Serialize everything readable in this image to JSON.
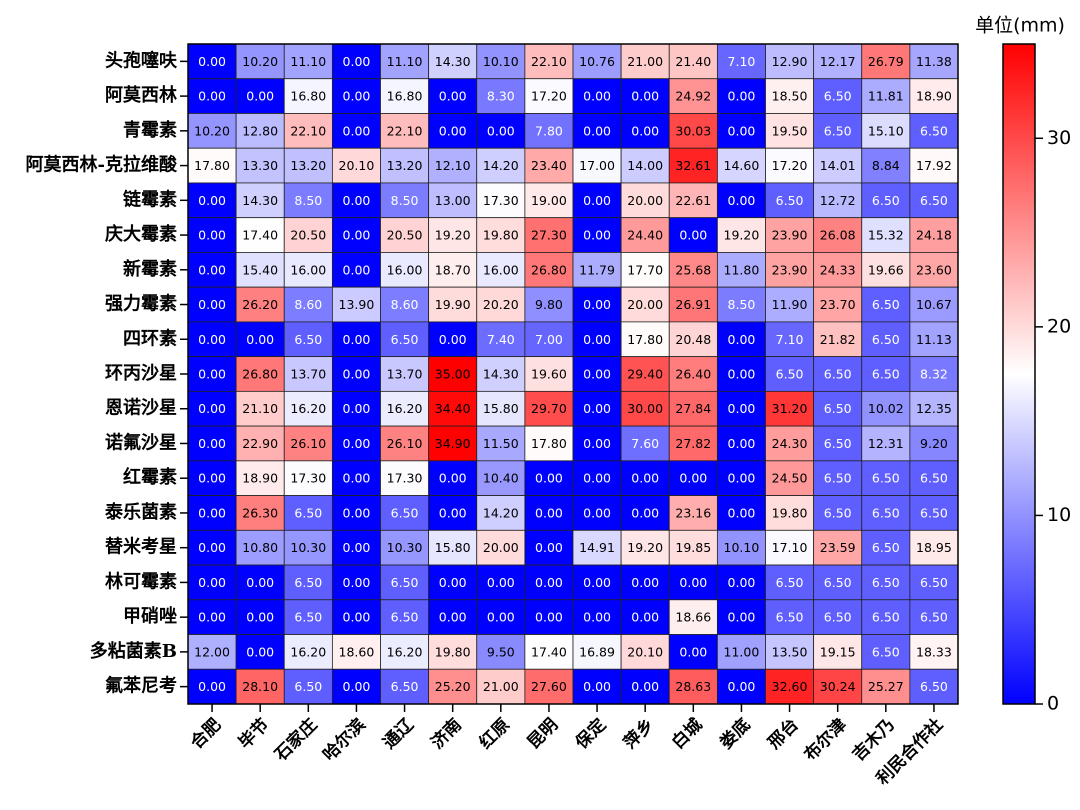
{
  "chart_data": {
    "type": "heatmap",
    "colorbar_title": "单位(mm)",
    "columns": [
      "合肥",
      "毕节",
      "石家庄",
      "哈尔滨",
      "通辽",
      "济南",
      "红原",
      "昆明",
      "保定",
      "萍乡",
      "白城",
      "娄底",
      "邢台",
      "布尔津",
      "吉木乃",
      "利民合作社"
    ],
    "rows": [
      "头孢噻呋",
      "阿莫西林",
      "青霉素",
      "阿莫西林-克拉维酸",
      "链霉素",
      "庆大霉素",
      "新霉素",
      "强力霉素",
      "四环素",
      "环丙沙星",
      "恩诺沙星",
      "诺氟沙星",
      "红霉素",
      "泰乐菌素",
      "替米考星",
      "林可霉素",
      "甲硝唑",
      "多粘菌素B",
      "氟苯尼考"
    ],
    "values": [
      [
        0,
        10.2,
        11.1,
        0,
        11.1,
        14.3,
        10.1,
        22.1,
        10.76,
        21,
        21.4,
        7.1,
        12.9,
        12.17,
        26.79,
        11.38
      ],
      [
        0,
        0,
        16.8,
        0,
        16.8,
        0,
        8.3,
        17.2,
        0,
        0,
        24.92,
        0,
        18.5,
        6.5,
        11.81,
        18.9
      ],
      [
        10.2,
        12.8,
        22.1,
        0,
        22.1,
        0,
        0,
        7.8,
        0,
        0,
        30.03,
        0,
        19.5,
        6.5,
        15.1,
        6.5
      ],
      [
        17.8,
        13.3,
        13.2,
        20.1,
        13.2,
        12.1,
        14.2,
        23.4,
        17,
        14,
        32.61,
        14.6,
        17.2,
        14.01,
        8.84,
        17.92
      ],
      [
        0,
        14.3,
        8.5,
        0,
        8.5,
        13,
        17.3,
        19,
        0,
        20,
        22.61,
        0,
        6.5,
        12.72,
        6.5,
        6.5
      ],
      [
        0,
        17.4,
        20.5,
        0,
        20.5,
        19.2,
        19.8,
        27.3,
        0,
        24.4,
        0,
        19.2,
        23.9,
        26.08,
        15.32,
        24.18
      ],
      [
        0,
        15.4,
        16,
        0,
        16,
        18.7,
        16,
        26.8,
        11.79,
        17.7,
        25.68,
        11.8,
        23.9,
        24.33,
        19.66,
        23.6
      ],
      [
        0,
        26.2,
        8.6,
        13.9,
        8.6,
        19.9,
        20.2,
        9.8,
        0,
        20,
        26.91,
        8.5,
        11.9,
        23.7,
        6.5,
        10.67
      ],
      [
        0,
        0,
        6.5,
        0,
        6.5,
        0,
        7.4,
        7,
        0,
        17.8,
        20.48,
        0,
        7.1,
        21.82,
        6.5,
        11.13
      ],
      [
        0,
        26.8,
        13.7,
        0,
        13.7,
        35,
        14.3,
        19.6,
        0,
        29.4,
        26.4,
        0,
        6.5,
        6.5,
        6.5,
        8.32
      ],
      [
        0,
        21.1,
        16.2,
        0,
        16.2,
        34.4,
        15.8,
        29.7,
        0,
        30,
        27.84,
        0,
        31.2,
        6.5,
        10.02,
        12.35
      ],
      [
        0,
        22.9,
        26.1,
        0,
        26.1,
        34.9,
        11.5,
        17.8,
        0,
        7.6,
        27.82,
        0,
        24.3,
        6.5,
        12.31,
        9.2
      ],
      [
        0,
        18.9,
        17.3,
        0,
        17.3,
        0,
        10.4,
        0,
        0,
        0,
        0,
        0,
        24.5,
        6.5,
        6.5,
        6.5
      ],
      [
        0,
        26.3,
        6.5,
        0,
        6.5,
        0,
        14.2,
        0,
        0,
        0,
        23.16,
        0,
        19.8,
        6.5,
        6.5,
        6.5
      ],
      [
        0,
        10.8,
        10.3,
        0,
        10.3,
        15.8,
        20,
        0,
        14.91,
        19.2,
        19.85,
        10.1,
        17.1,
        23.59,
        6.5,
        18.95
      ],
      [
        0,
        0,
        6.5,
        0,
        6.5,
        0,
        0,
        0,
        0,
        0,
        0,
        0,
        6.5,
        6.5,
        6.5,
        6.5
      ],
      [
        0,
        0,
        6.5,
        0,
        6.5,
        0,
        0,
        0,
        0,
        0,
        18.66,
        0,
        6.5,
        6.5,
        6.5,
        6.5
      ],
      [
        12,
        0,
        16.2,
        18.6,
        16.2,
        19.8,
        9.5,
        17.4,
        16.89,
        20.1,
        0,
        11,
        13.5,
        19.15,
        6.5,
        18.33
      ],
      [
        0,
        28.1,
        6.5,
        0,
        6.5,
        25.2,
        21,
        27.6,
        0,
        0,
        28.63,
        0,
        32.6,
        30.24,
        25.27,
        6.5
      ]
    ],
    "value_labels": [
      [
        "0.00",
        "10.20",
        "11.10",
        "0.00",
        "11.10",
        "14.30",
        "10.10",
        "22.10",
        "10.76",
        "21.00",
        "21.40",
        "7.10",
        "12.90",
        "12.17",
        "26.79",
        "11.38"
      ],
      [
        "0.00",
        "0.00",
        "16.80",
        "0.00",
        "16.80",
        "0.00",
        "8.30",
        "17.20",
        "0.00",
        "0.00",
        "24.92",
        "0.00",
        "18.50",
        "6.50",
        "11.81",
        "18.90"
      ],
      [
        "10.20",
        "12.80",
        "22.10",
        "0.00",
        "22.10",
        "0.00",
        "0.00",
        "7.80",
        "0.00",
        "0.00",
        "30.03",
        "0.00",
        "19.50",
        "6.50",
        "15.10",
        "6.50"
      ],
      [
        "17.80",
        "13.30",
        "13.20",
        "20.10",
        "13.20",
        "12.10",
        "14.20",
        "23.40",
        "17.00",
        "14.00",
        "32.61",
        "14.60",
        "17.20",
        "14.01",
        "8.84",
        "17.92"
      ],
      [
        "0.00",
        "14.30",
        "8.50",
        "0.00",
        "8.50",
        "13.00",
        "17.30",
        "19.00",
        "0.00",
        "20.00",
        "22.61",
        "0.00",
        "6.50",
        "12.72",
        "6.50",
        "6.50"
      ],
      [
        "0.00",
        "17.40",
        "20.50",
        "0.00",
        "20.50",
        "19.20",
        "19.80",
        "27.30",
        "0.00",
        "24.40",
        "0.00",
        "19.20",
        "23.90",
        "26.08",
        "15.32",
        "24.18"
      ],
      [
        "0.00",
        "15.40",
        "16.00",
        "0.00",
        "16.00",
        "18.70",
        "16.00",
        "26.80",
        "11.79",
        "17.70",
        "25.68",
        "11.80",
        "23.90",
        "24.33",
        "19.66",
        "23.60"
      ],
      [
        "0.00",
        "26.20",
        "8.60",
        "13.90",
        "8.60",
        "19.90",
        "20.20",
        "9.80",
        "0.00",
        "20.00",
        "26.91",
        "8.50",
        "11.90",
        "23.70",
        "6.50",
        "10.67"
      ],
      [
        "0.00",
        "0.00",
        "6.50",
        "0.00",
        "6.50",
        "0.00",
        "7.40",
        "7.00",
        "0.00",
        "17.80",
        "20.48",
        "0.00",
        "7.10",
        "21.82",
        "6.50",
        "11.13"
      ],
      [
        "0.00",
        "26.80",
        "13.70",
        "0.00",
        "13.70",
        "35.00",
        "14.30",
        "19.60",
        "0.00",
        "29.40",
        "26.40",
        "0.00",
        "6.50",
        "6.50",
        "6.50",
        "8.32"
      ],
      [
        "0.00",
        "21.10",
        "16.20",
        "0.00",
        "16.20",
        "34.40",
        "15.80",
        "29.70",
        "0.00",
        "30.00",
        "27.84",
        "0.00",
        "31.20",
        "6.50",
        "10.02",
        "12.35"
      ],
      [
        "0.00",
        "22.90",
        "26.10",
        "0.00",
        "26.10",
        "34.90",
        "11.50",
        "17.80",
        "0.00",
        "7.60",
        "27.82",
        "0.00",
        "24.30",
        "6.50",
        "12.31",
        "9.20"
      ],
      [
        "0.00",
        "18.90",
        "17.30",
        "0.00",
        "17.30",
        "0.00",
        "10.40",
        "0.00",
        "0.00",
        "0.00",
        "0.00",
        "0.00",
        "24.50",
        "6.50",
        "6.50",
        "6.50"
      ],
      [
        "0.00",
        "26.30",
        "6.50",
        "0.00",
        "6.50",
        "0.00",
        "14.20",
        "0.00",
        "0.00",
        "0.00",
        "23.16",
        "0.00",
        "19.80",
        "6.50",
        "6.50",
        "6.50"
      ],
      [
        "0.00",
        "10.80",
        "10.30",
        "0.00",
        "10.30",
        "15.80",
        "20.00",
        "0.00",
        "14.91",
        "19.20",
        "19.85",
        "10.10",
        "17.10",
        "23.59",
        "6.50",
        "18.95"
      ],
      [
        "0.00",
        "0.00",
        "6.50",
        "0.00",
        "6.50",
        "0.00",
        "0.00",
        "0.00",
        "0.00",
        "0.00",
        "0.00",
        "0.00",
        "6.50",
        "6.50",
        "6.50",
        "6.50"
      ],
      [
        "0.00",
        "0.00",
        "6.50",
        "0.00",
        "6.50",
        "0.00",
        "0.00",
        "0.00",
        "0.00",
        "0.00",
        "18.66",
        "0.00",
        "6.50",
        "6.50",
        "6.50",
        "6.50"
      ],
      [
        "12.00",
        "0.00",
        "16.20",
        "18.60",
        "16.20",
        "19.80",
        "9.50",
        "17.40",
        "16.89",
        "20.10",
        "0.00",
        "11.00",
        "13.50",
        "19.15",
        "6.50",
        "18.33"
      ],
      [
        "0.00",
        "28.10",
        "6.50",
        "0.00",
        "6.50",
        "25.20",
        "21.00",
        "27.60",
        "0.00",
        "0.00",
        "28.63",
        "0.00",
        "32.60",
        "30.24",
        "25.27",
        "6.50"
      ]
    ],
    "zlim": [
      0,
      35
    ],
    "zticks": [
      0,
      10,
      20,
      30
    ],
    "colors": [
      "#0000ff",
      "#ffffff",
      "#ff0000"
    ]
  }
}
